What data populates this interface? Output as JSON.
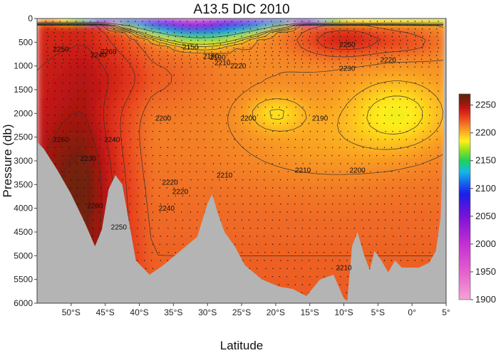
{
  "chart_data": {
    "type": "heatmap",
    "title": "A13.5 DIC 2010",
    "xlabel": "Latitude",
    "ylabel": "Pressure (db)",
    "xlim": [
      -55,
      5
    ],
    "ylim": [
      6000,
      0
    ],
    "x_ticks": [
      {
        "value": -50,
        "label": "50°S"
      },
      {
        "value": -45,
        "label": "45°S"
      },
      {
        "value": -40,
        "label": "40°S"
      },
      {
        "value": -35,
        "label": "35°S"
      },
      {
        "value": -30,
        "label": "30°S"
      },
      {
        "value": -25,
        "label": "25°S"
      },
      {
        "value": -20,
        "label": "20°S"
      },
      {
        "value": -15,
        "label": "15°S"
      },
      {
        "value": -10,
        "label": "10°S"
      },
      {
        "value": -5,
        "label": "5°S"
      },
      {
        "value": 0,
        "label": "0°"
      },
      {
        "value": 5,
        "label": "5°"
      }
    ],
    "y_ticks": [
      0,
      500,
      1000,
      1500,
      2000,
      2500,
      3000,
      3500,
      4000,
      4500,
      5000,
      5500,
      6000
    ],
    "colorbar": {
      "min": 1900,
      "max": 2270,
      "ticks": [
        2250,
        2200,
        2150,
        2100,
        2050,
        2000,
        1950,
        1900
      ],
      "stops": [
        {
          "v": 1900,
          "color": "#f7a3d6"
        },
        {
          "v": 1950,
          "color": "#e55fcd"
        },
        {
          "v": 2000,
          "color": "#c42fd2"
        },
        {
          "v": 2050,
          "color": "#7a12d8"
        },
        {
          "v": 2090,
          "color": "#1a1ee8"
        },
        {
          "v": 2110,
          "color": "#1565f0"
        },
        {
          "v": 2130,
          "color": "#12b9e6"
        },
        {
          "v": 2150,
          "color": "#1ed25a"
        },
        {
          "v": 2170,
          "color": "#9ae21c"
        },
        {
          "v": 2185,
          "color": "#fff01a"
        },
        {
          "v": 2200,
          "color": "#fcb222"
        },
        {
          "v": 2215,
          "color": "#f27628"
        },
        {
          "v": 2230,
          "color": "#e63a1c"
        },
        {
          "v": 2245,
          "color": "#c01414"
        },
        {
          "v": 2255,
          "color": "#8e1a0c"
        },
        {
          "v": 2270,
          "color": "#5a280c"
        }
      ]
    },
    "colors": {
      "seafloor": "#b4b4b4",
      "contour": "#333333"
    },
    "contour_labels": [
      {
        "text": "2150",
        "lat": -32.5,
        "p": 650
      },
      {
        "text": "2180",
        "lat": -29.5,
        "p": 850
      },
      {
        "text": "2190",
        "lat": -28.5,
        "p": 870
      },
      {
        "text": "2210",
        "lat": -27.8,
        "p": 980
      },
      {
        "text": "2220",
        "lat": -25.5,
        "p": 1050
      },
      {
        "text": "2230",
        "lat": -9.5,
        "p": 1100
      },
      {
        "text": "2220",
        "lat": -3.5,
        "p": 920
      },
      {
        "text": "2250",
        "lat": -9.5,
        "p": 600
      },
      {
        "text": "2250",
        "lat": -51.5,
        "p": 700
      },
      {
        "text": "2260",
        "lat": -44.5,
        "p": 750
      },
      {
        "text": "2240",
        "lat": -46.0,
        "p": 820
      },
      {
        "text": "2200",
        "lat": -36.5,
        "p": 2150
      },
      {
        "text": "2200",
        "lat": -24.0,
        "p": 2150
      },
      {
        "text": "2190",
        "lat": -13.5,
        "p": 2150
      },
      {
        "text": "2220",
        "lat": -35.5,
        "p": 3500
      },
      {
        "text": "2240",
        "lat": -44.0,
        "p": 2600
      },
      {
        "text": "2230",
        "lat": -47.5,
        "p": 3000
      },
      {
        "text": "2260",
        "lat": -51.5,
        "p": 2600
      },
      {
        "text": "2260",
        "lat": -46.5,
        "p": 4000
      },
      {
        "text": "2250",
        "lat": -43.0,
        "p": 4450
      },
      {
        "text": "2240",
        "lat": -36.0,
        "p": 4050
      },
      {
        "text": "2220",
        "lat": -34.0,
        "p": 3700
      },
      {
        "text": "2210",
        "lat": -27.5,
        "p": 3350
      },
      {
        "text": "2210",
        "lat": -16.0,
        "p": 3250
      },
      {
        "text": "2200",
        "lat": -8.0,
        "p": 3250
      },
      {
        "text": "2210",
        "lat": -10.0,
        "p": 5300
      }
    ]
  }
}
